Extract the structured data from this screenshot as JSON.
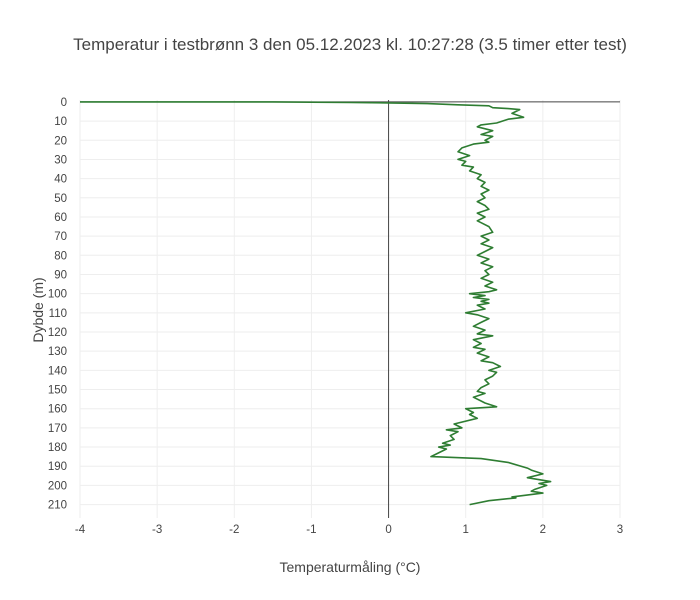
{
  "chart_data": {
    "type": "line",
    "title": "Temperatur i testbrønn 3 den 05.12.2023 kl. 10:27:28 (3.5 timer etter test)",
    "xlabel": "Temperaturmåling (°C)",
    "ylabel": "Dybde (m)",
    "xlim": [
      -4,
      3
    ],
    "ylim": [
      217,
      -1
    ],
    "y_reversed": true,
    "grid": true,
    "legend": "none",
    "x_ticks": [
      -4,
      -3,
      -2,
      -1,
      0,
      1,
      2,
      3
    ],
    "y_ticks": [
      0,
      10,
      20,
      30,
      40,
      50,
      60,
      70,
      80,
      90,
      100,
      110,
      120,
      130,
      140,
      150,
      160,
      170,
      180,
      190,
      200,
      210
    ],
    "line_color": "#2e7d32",
    "series": [
      {
        "x": [
          -4.0,
          -3.0,
          -1.5,
          -0.5,
          0.0,
          0.5,
          0.9,
          1.3,
          1.35,
          1.55,
          1.7,
          1.6,
          1.75,
          1.55,
          1.4,
          1.2,
          1.15,
          1.35,
          1.2,
          1.35,
          1.25,
          1.3,
          1.1,
          0.95,
          0.9,
          1.05,
          0.9,
          1.0,
          0.95,
          1.1,
          1.05,
          1.2,
          1.15,
          1.25,
          1.2,
          1.3,
          1.2,
          1.25,
          1.15,
          1.25,
          1.3,
          1.15,
          1.25,
          1.15,
          1.2,
          1.3,
          1.35,
          1.2,
          1.3,
          1.2,
          1.35,
          1.25,
          1.15,
          1.3,
          1.2,
          1.35,
          1.25,
          1.3,
          1.2,
          1.35,
          1.25,
          1.4,
          1.3,
          1.05,
          1.25,
          1.1,
          1.3,
          1.2,
          1.3,
          1.15,
          1.25,
          1.0,
          1.15,
          1.3,
          1.2,
          1.1,
          1.25,
          1.15,
          1.35,
          1.1,
          1.2,
          1.1,
          1.25,
          1.15,
          1.3,
          1.2,
          1.35,
          1.45,
          1.3,
          1.4,
          1.35,
          1.25,
          1.3,
          1.2,
          1.15,
          1.25,
          1.1,
          1.2,
          1.25,
          1.4,
          1.0,
          1.1,
          1.05,
          1.15,
          0.85,
          0.95,
          0.75,
          0.9,
          0.8,
          0.85,
          0.7,
          0.8,
          0.65,
          0.75,
          0.55,
          1.2,
          1.55,
          1.8,
          1.85,
          2.0,
          1.8,
          2.1,
          1.95,
          2.05,
          1.9,
          1.85,
          2.0,
          1.6,
          1.65,
          1.3,
          1.05
        ],
        "y": [
          0,
          0,
          0,
          0.3,
          0.5,
          0.9,
          1.5,
          2,
          3,
          3.5,
          4,
          6,
          8,
          9,
          11,
          12,
          13,
          15,
          17,
          18,
          20,
          21,
          22,
          24,
          26,
          28,
          30,
          31,
          33,
          34,
          36,
          38,
          40,
          42,
          44,
          46,
          48,
          50,
          52,
          54,
          56,
          58,
          60,
          62,
          63,
          65,
          68,
          70,
          72,
          74,
          76,
          78,
          80,
          82,
          84,
          86,
          88,
          90,
          92,
          94,
          96,
          98,
          99,
          100,
          101,
          102,
          103,
          104,
          105,
          106,
          108,
          110,
          111,
          113,
          115,
          117,
          119,
          121,
          122,
          124,
          126,
          128,
          129,
          131,
          133,
          135,
          136,
          138,
          140,
          141,
          143,
          145,
          147,
          149,
          151,
          152,
          154,
          156,
          157,
          159,
          160,
          162,
          163,
          165,
          168,
          170,
          171,
          172,
          174,
          176,
          178,
          179,
          180,
          181,
          185,
          186,
          188,
          191,
          192,
          194,
          196,
          198,
          199,
          200,
          202,
          203,
          204,
          206,
          206.5,
          208,
          210
        ]
      }
    ]
  }
}
